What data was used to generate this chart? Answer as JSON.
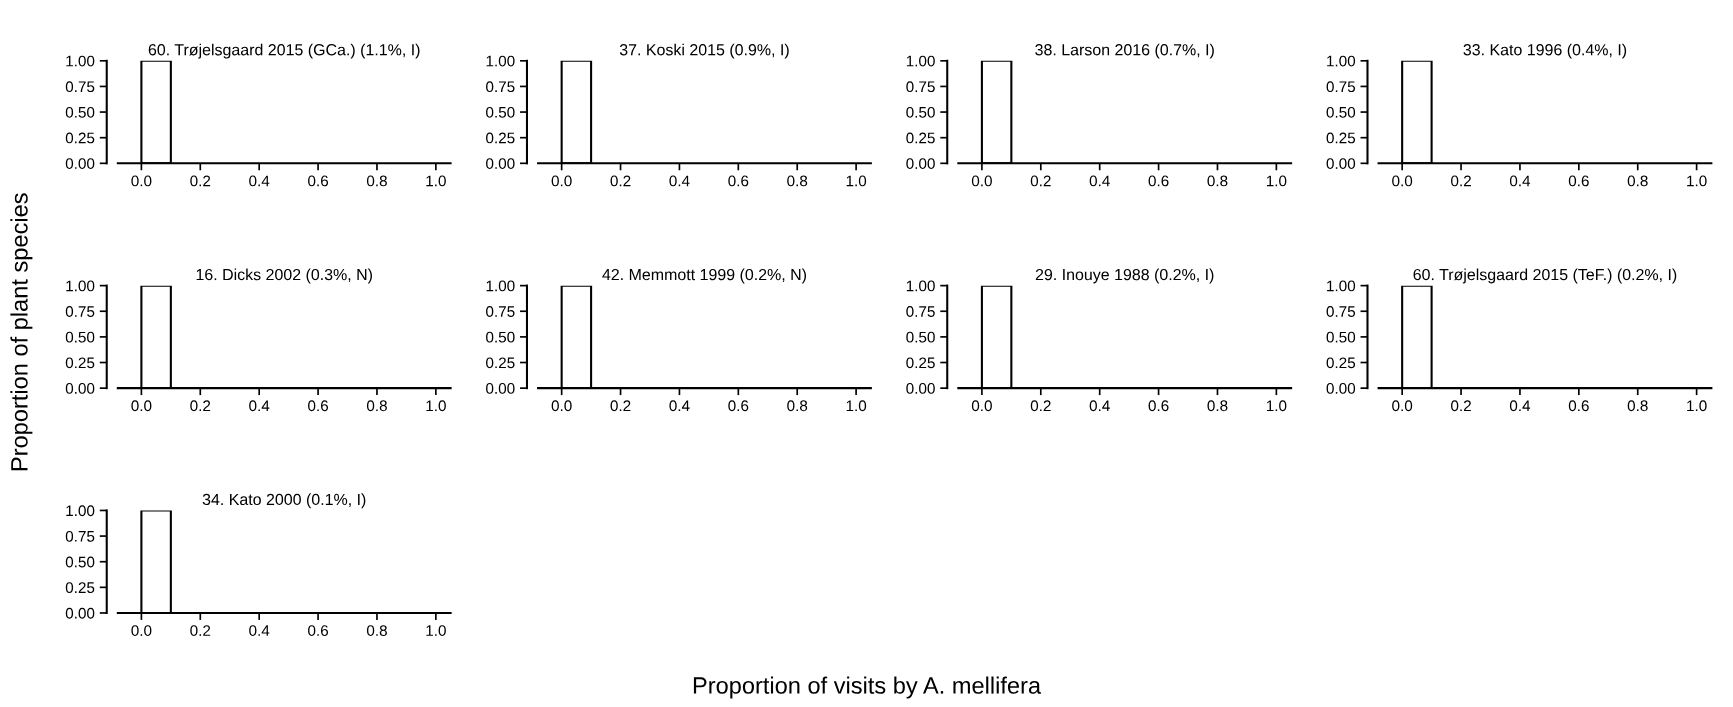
{
  "chart_data": [
    {
      "type": "histogram",
      "title": "60. Trøjelsgaard 2015 (GCa.) (1.1%, I)",
      "bins": [
        0,
        0.1,
        0.2,
        0.3,
        0.4,
        0.5,
        0.6,
        0.7,
        0.8,
        0.9,
        1.0
      ],
      "values": [
        1,
        0,
        0,
        0,
        0,
        0,
        0,
        0,
        0,
        0
      ],
      "color": "#ffffff",
      "xlim": [
        -0.08,
        1.05
      ],
      "ylim": [
        0,
        1
      ],
      "xticks": [
        {
          "value": 0,
          "label": "0.0"
        },
        {
          "value": 0.2,
          "label": "0.2"
        },
        {
          "value": 0.4,
          "label": "0.4"
        },
        {
          "value": 0.6,
          "label": "0.6"
        },
        {
          "value": 0.8,
          "label": "0.8"
        },
        {
          "value": 1,
          "label": "1.0"
        }
      ],
      "yticks": [
        {
          "value": 0,
          "label": "0.00"
        },
        {
          "value": 0.25,
          "label": "0.25"
        },
        {
          "value": 0.5,
          "label": "0.50"
        },
        {
          "value": 0.75,
          "label": "0.75"
        },
        {
          "value": 1,
          "label": "1.00"
        }
      ],
      "grid": false
    },
    {
      "type": "histogram",
      "title": "37. Koski 2015 (0.9%, I)",
      "bins": [
        0,
        0.1,
        0.2,
        0.3,
        0.4,
        0.5,
        0.6,
        0.7,
        0.8,
        0.9,
        1.0
      ],
      "values": [
        1,
        0,
        0,
        0,
        0,
        0,
        0,
        0,
        0,
        0
      ],
      "color": "#ffffff",
      "xlim": [
        -0.08,
        1.05
      ],
      "ylim": [
        0,
        1
      ],
      "xticks": [
        {
          "value": 0,
          "label": "0.0"
        },
        {
          "value": 0.2,
          "label": "0.2"
        },
        {
          "value": 0.4,
          "label": "0.4"
        },
        {
          "value": 0.6,
          "label": "0.6"
        },
        {
          "value": 0.8,
          "label": "0.8"
        },
        {
          "value": 1,
          "label": "1.0"
        }
      ],
      "yticks": [
        {
          "value": 0,
          "label": "0.00"
        },
        {
          "value": 0.25,
          "label": "0.25"
        },
        {
          "value": 0.5,
          "label": "0.50"
        },
        {
          "value": 0.75,
          "label": "0.75"
        },
        {
          "value": 1,
          "label": "1.00"
        }
      ],
      "grid": false
    },
    {
      "type": "histogram",
      "title": "38. Larson 2016 (0.7%, I)",
      "bins": [
        0,
        0.1,
        0.2,
        0.3,
        0.4,
        0.5,
        0.6,
        0.7,
        0.8,
        0.9,
        1.0
      ],
      "values": [
        1,
        0,
        0,
        0,
        0,
        0,
        0,
        0,
        0,
        0
      ],
      "color": "#ffffff",
      "xlim": [
        -0.08,
        1.05
      ],
      "ylim": [
        0,
        1
      ],
      "xticks": [
        {
          "value": 0,
          "label": "0.0"
        },
        {
          "value": 0.2,
          "label": "0.2"
        },
        {
          "value": 0.4,
          "label": "0.4"
        },
        {
          "value": 0.6,
          "label": "0.6"
        },
        {
          "value": 0.8,
          "label": "0.8"
        },
        {
          "value": 1,
          "label": "1.0"
        }
      ],
      "yticks": [
        {
          "value": 0,
          "label": "0.00"
        },
        {
          "value": 0.25,
          "label": "0.25"
        },
        {
          "value": 0.5,
          "label": "0.50"
        },
        {
          "value": 0.75,
          "label": "0.75"
        },
        {
          "value": 1,
          "label": "1.00"
        }
      ],
      "grid": false
    },
    {
      "type": "histogram",
      "title": "33. Kato 1996 (0.4%, I)",
      "bins": [
        0,
        0.1,
        0.2,
        0.3,
        0.4,
        0.5,
        0.6,
        0.7,
        0.8,
        0.9,
        1.0
      ],
      "values": [
        1,
        0,
        0,
        0,
        0,
        0,
        0,
        0,
        0,
        0
      ],
      "color": "#ffffff",
      "xlim": [
        -0.08,
        1.05
      ],
      "ylim": [
        0,
        1
      ],
      "xticks": [
        {
          "value": 0,
          "label": "0.0"
        },
        {
          "value": 0.2,
          "label": "0.2"
        },
        {
          "value": 0.4,
          "label": "0.4"
        },
        {
          "value": 0.6,
          "label": "0.6"
        },
        {
          "value": 0.8,
          "label": "0.8"
        },
        {
          "value": 1,
          "label": "1.0"
        }
      ],
      "yticks": [
        {
          "value": 0,
          "label": "0.00"
        },
        {
          "value": 0.25,
          "label": "0.25"
        },
        {
          "value": 0.5,
          "label": "0.50"
        },
        {
          "value": 0.75,
          "label": "0.75"
        },
        {
          "value": 1,
          "label": "1.00"
        }
      ],
      "grid": false
    },
    {
      "type": "histogram",
      "title": "16. Dicks 2002 (0.3%, N)",
      "ylabel": "Proportion of plant species",
      "bins": [
        0,
        0.1,
        0.2,
        0.3,
        0.4,
        0.5,
        0.6,
        0.7,
        0.8,
        0.9,
        1.0
      ],
      "values": [
        1,
        0,
        0,
        0,
        0,
        0,
        0,
        0,
        0,
        0
      ],
      "color": "#ffffff",
      "xlim": [
        -0.08,
        1.05
      ],
      "ylim": [
        0,
        1
      ],
      "xticks": [
        {
          "value": 0,
          "label": "0.0"
        },
        {
          "value": 0.2,
          "label": "0.2"
        },
        {
          "value": 0.4,
          "label": "0.4"
        },
        {
          "value": 0.6,
          "label": "0.6"
        },
        {
          "value": 0.8,
          "label": "0.8"
        },
        {
          "value": 1,
          "label": "1.0"
        }
      ],
      "yticks": [
        {
          "value": 0,
          "label": "0.00"
        },
        {
          "value": 0.25,
          "label": "0.25"
        },
        {
          "value": 0.5,
          "label": "0.50"
        },
        {
          "value": 0.75,
          "label": "0.75"
        },
        {
          "value": 1,
          "label": "1.00"
        }
      ],
      "grid": false
    },
    {
      "type": "histogram",
      "title": "42. Memmott 1999 (0.2%, N)",
      "xlabel": "Proportion of visits by A. mellifera",
      "bins": [
        0,
        0.1,
        0.2,
        0.3,
        0.4,
        0.5,
        0.6,
        0.7,
        0.8,
        0.9,
        1.0
      ],
      "values": [
        1,
        0,
        0,
        0,
        0,
        0,
        0,
        0,
        0,
        0
      ],
      "color": "#ffffff",
      "xlim": [
        -0.08,
        1.05
      ],
      "ylim": [
        0,
        1
      ],
      "xticks": [
        {
          "value": 0,
          "label": "0.0"
        },
        {
          "value": 0.2,
          "label": "0.2"
        },
        {
          "value": 0.4,
          "label": "0.4"
        },
        {
          "value": 0.6,
          "label": "0.6"
        },
        {
          "value": 0.8,
          "label": "0.8"
        },
        {
          "value": 1,
          "label": "1.0"
        }
      ],
      "yticks": [
        {
          "value": 0,
          "label": "0.00"
        },
        {
          "value": 0.25,
          "label": "0.25"
        },
        {
          "value": 0.5,
          "label": "0.50"
        },
        {
          "value": 0.75,
          "label": "0.75"
        },
        {
          "value": 1,
          "label": "1.00"
        }
      ],
      "grid": false
    },
    {
      "type": "histogram",
      "title": "29. Inouye 1988 (0.2%, I)",
      "bins": [
        0,
        0.1,
        0.2,
        0.3,
        0.4,
        0.5,
        0.6,
        0.7,
        0.8,
        0.9,
        1.0
      ],
      "values": [
        1,
        0,
        0,
        0,
        0,
        0,
        0,
        0,
        0,
        0
      ],
      "color": "#ffffff",
      "xlim": [
        -0.08,
        1.05
      ],
      "ylim": [
        0,
        1
      ],
      "xticks": [
        {
          "value": 0,
          "label": "0.0"
        },
        {
          "value": 0.2,
          "label": "0.2"
        },
        {
          "value": 0.4,
          "label": "0.4"
        },
        {
          "value": 0.6,
          "label": "0.6"
        },
        {
          "value": 0.8,
          "label": "0.8"
        },
        {
          "value": 1,
          "label": "1.0"
        }
      ],
      "yticks": [
        {
          "value": 0,
          "label": "0.00"
        },
        {
          "value": 0.25,
          "label": "0.25"
        },
        {
          "value": 0.5,
          "label": "0.50"
        },
        {
          "value": 0.75,
          "label": "0.75"
        },
        {
          "value": 1,
          "label": "1.00"
        }
      ],
      "grid": false
    },
    {
      "type": "histogram",
      "title": "60. Trøjelsgaard 2015 (TeF.) (0.2%, I)",
      "bins": [
        0,
        0.1,
        0.2,
        0.3,
        0.4,
        0.5,
        0.6,
        0.7,
        0.8,
        0.9,
        1.0
      ],
      "values": [
        1,
        0,
        0,
        0,
        0,
        0,
        0,
        0,
        0,
        0
      ],
      "color": "#ffffff",
      "xlim": [
        -0.08,
        1.05
      ],
      "ylim": [
        0,
        1
      ],
      "xticks": [
        {
          "value": 0,
          "label": "0.0"
        },
        {
          "value": 0.2,
          "label": "0.2"
        },
        {
          "value": 0.4,
          "label": "0.4"
        },
        {
          "value": 0.6,
          "label": "0.6"
        },
        {
          "value": 0.8,
          "label": "0.8"
        },
        {
          "value": 1,
          "label": "1.0"
        }
      ],
      "yticks": [
        {
          "value": 0,
          "label": "0.00"
        },
        {
          "value": 0.25,
          "label": "0.25"
        },
        {
          "value": 0.5,
          "label": "0.50"
        },
        {
          "value": 0.75,
          "label": "0.75"
        },
        {
          "value": 1,
          "label": "1.00"
        }
      ],
      "grid": false
    },
    {
      "type": "histogram",
      "title": "34. Kato 2000 (0.1%, I)",
      "bins": [
        0,
        0.1,
        0.2,
        0.3,
        0.4,
        0.5,
        0.6,
        0.7,
        0.8,
        0.9,
        1.0
      ],
      "values": [
        1,
        0,
        0,
        0,
        0,
        0,
        0,
        0,
        0,
        0
      ],
      "color": "#ffffff",
      "xlim": [
        -0.08,
        1.05
      ],
      "ylim": [
        0,
        1
      ],
      "xticks": [
        {
          "value": 0,
          "label": "0.0"
        },
        {
          "value": 0.2,
          "label": "0.2"
        },
        {
          "value": 0.4,
          "label": "0.4"
        },
        {
          "value": 0.6,
          "label": "0.6"
        },
        {
          "value": 0.8,
          "label": "0.8"
        },
        {
          "value": 1,
          "label": "1.0"
        }
      ],
      "yticks": [
        {
          "value": 0,
          "label": "0.00"
        },
        {
          "value": 0.25,
          "label": "0.25"
        },
        {
          "value": 0.5,
          "label": "0.50"
        },
        {
          "value": 0.75,
          "label": "0.75"
        },
        {
          "value": 1,
          "label": "1.00"
        }
      ],
      "grid": false
    }
  ]
}
